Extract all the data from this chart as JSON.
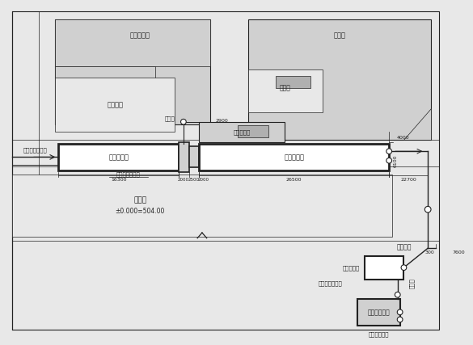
{
  "bg_color": "#e8e8e8",
  "white": "#ffffff",
  "light_gray": "#d0d0d0",
  "med_gray": "#b0b0b0",
  "dark": "#222222",
  "labels": {
    "baojian": "保健助用房",
    "jvdi": "集中绿地",
    "fangsheke": "放射科",
    "fengjifang": "新建风机房",
    "mendianzu": "门诊楼",
    "huafenchi": "新建化粪池",
    "shenghuchi": "新建生化池",
    "jinshui_wu": "进水管（污水）",
    "jinshui_fu": "进水管（废水）",
    "guonei": "厕所内站",
    "jishuichi": "新建集水池",
    "yuanwushui": "原污水处理站",
    "bengsheng": "此段为泵提升管",
    "yiliuguan": "溢流管",
    "jieru": "接入市政管网",
    "zhuyuanlou": "住院楼",
    "elevation": "±0.000=504.00",
    "d16300": "16300",
    "d2000a": "2000",
    "d2500": "2500",
    "d2000b": "2000",
    "d26500": "26500",
    "d22700": "22700",
    "d300": "300",
    "d7600": "7600",
    "d2900": "2900",
    "d4000": "4000",
    "d6100": "6100"
  }
}
